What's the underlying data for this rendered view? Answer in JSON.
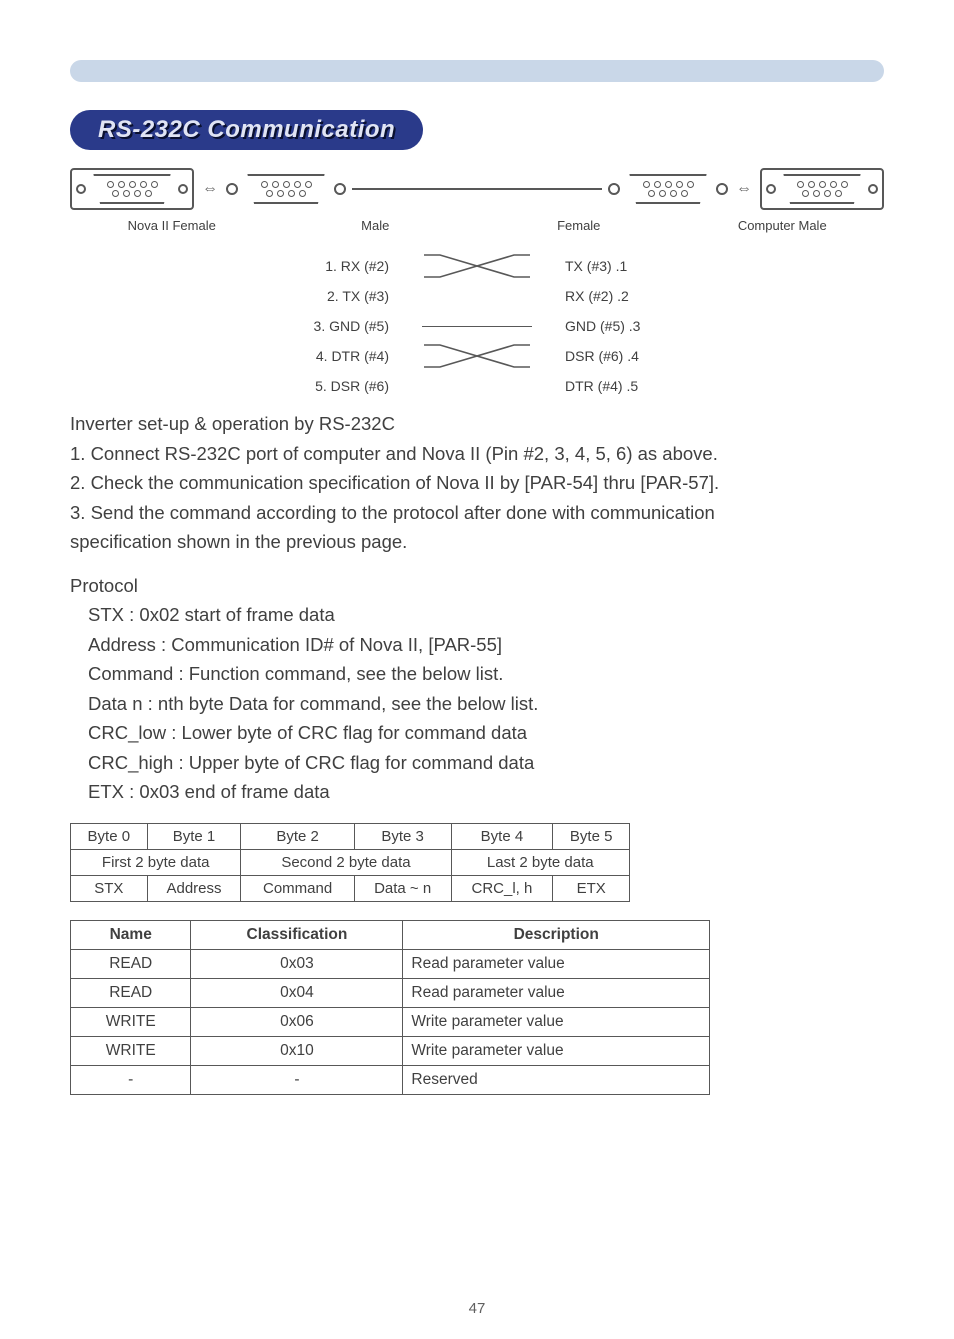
{
  "topBar": {
    "color": "#c9d7e8"
  },
  "sectionPill": {
    "text": "RS-232C Communication",
    "bg": "#2a3a8a",
    "fg": "#e0e4f4",
    "shadow": "#0a1030"
  },
  "connectors": {
    "labels": [
      "Nova II Female",
      "Male",
      "Female",
      "Computer Male"
    ],
    "pinColor": "#585858"
  },
  "wiring": [
    {
      "left": "1. RX (#2)",
      "type": "cross",
      "right": "TX (#3) .1"
    },
    {
      "left": "2. TX (#3)",
      "type": "",
      "right": "RX (#2) .2"
    },
    {
      "left": "3. GND (#5)",
      "type": "straight",
      "right": "GND (#5) .3"
    },
    {
      "left": "4. DTR (#4)",
      "type": "cross",
      "right": "DSR (#6) .4"
    },
    {
      "left": "5. DSR (#6)",
      "type": "",
      "right": "DTR (#4) .5"
    }
  ],
  "para1": [
    "Inverter set-up & operation by RS-232C",
    "1. Connect RS-232C port of computer and Nova II (Pin #2, 3, 4, 5, 6) as above.",
    "2. Check the communication specification of Nova II by [PAR-54] thru [PAR-57].",
    "3. Send the command according to the protocol after done with communication",
    "specification shown in the previous page."
  ],
  "para2": {
    "title": "Protocol",
    "lines": [
      "STX : 0x02 start of frame data",
      "Address : Communication ID# of Nova II, [PAR-55]",
      "Command : Function command, see the below list.",
      "Data n : nth byte Data for command, see the below list.",
      "CRC_low : Lower byte of CRC flag for command data",
      "CRC_high : Upper byte of CRC flag for command data",
      "ETX : 0x03 end of frame data"
    ]
  },
  "protoTable": {
    "row1": [
      "Byte 0",
      "Byte 1",
      "Byte 2",
      "Byte 3",
      "Byte 4",
      "Byte 5"
    ],
    "row2": [
      {
        "text": "First 2 byte data",
        "span": 2
      },
      {
        "text": "Second 2 byte data",
        "span": 2
      },
      {
        "text": "Last 2 byte data",
        "span": 2
      }
    ],
    "row3": [
      "STX",
      "Address",
      "Command",
      "Data ~ n",
      "CRC_l, h",
      "ETX"
    ]
  },
  "cmdTable": {
    "headers": [
      "Name",
      "Classification",
      "Description"
    ],
    "rows": [
      [
        "READ",
        "0x03",
        "Read parameter value"
      ],
      [
        "READ",
        "0x04",
        "Read parameter value"
      ],
      [
        "WRITE",
        "0x06",
        "Write parameter value"
      ],
      [
        "WRITE",
        "0x10",
        "Write parameter value"
      ],
      [
        "-",
        "-",
        "Reserved"
      ]
    ]
  },
  "pageNumber": "47"
}
